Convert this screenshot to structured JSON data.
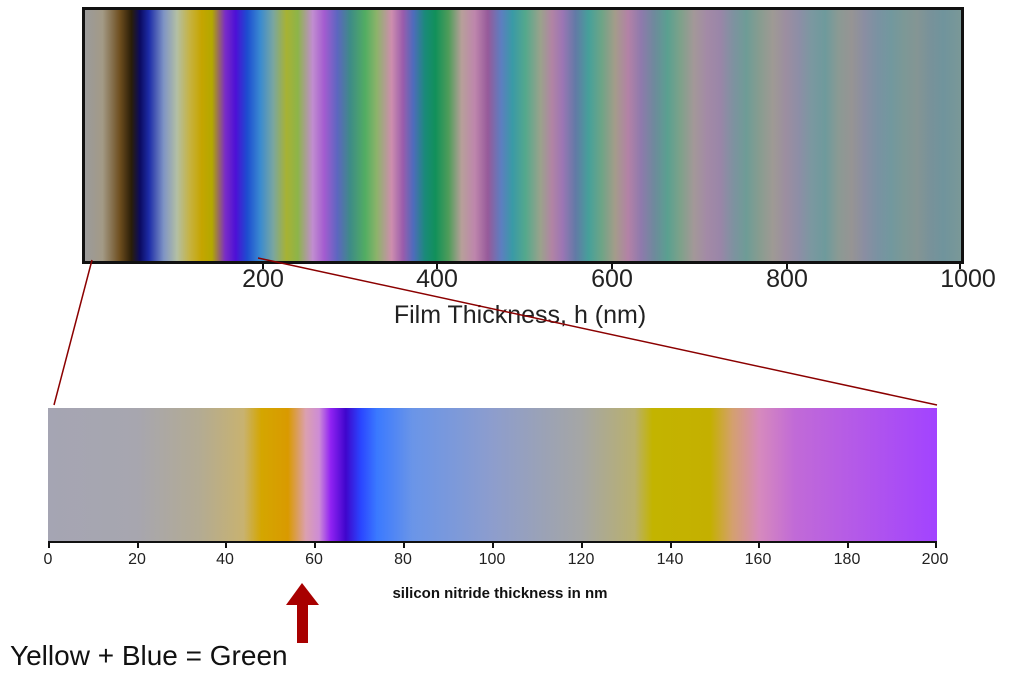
{
  "top_strip": {
    "axis_title": "Film Thickness, h (nm)",
    "ticks": [
      {
        "value": 200,
        "label": "200"
      },
      {
        "value": 400,
        "label": "400"
      },
      {
        "value": 600,
        "label": "600"
      },
      {
        "value": 800,
        "label": "800"
      },
      {
        "value": 1000,
        "label": "1000"
      }
    ],
    "range": [
      0,
      1000
    ]
  },
  "bottom_strip": {
    "axis_title": "silicon nitride thickness in nm",
    "ticks": [
      "0",
      "20",
      "40",
      "60",
      "80",
      "100",
      "120",
      "140",
      "160",
      "180",
      "200"
    ],
    "range": [
      0,
      200
    ]
  },
  "zoom_region": {
    "from": 0,
    "to": 200
  },
  "marker": {
    "at_value": 58,
    "color": "#a80000"
  },
  "caption": "Yellow + Blue = Green",
  "colors": {
    "zoom_lines": "#8b0000",
    "arrow": "#a80000"
  }
}
